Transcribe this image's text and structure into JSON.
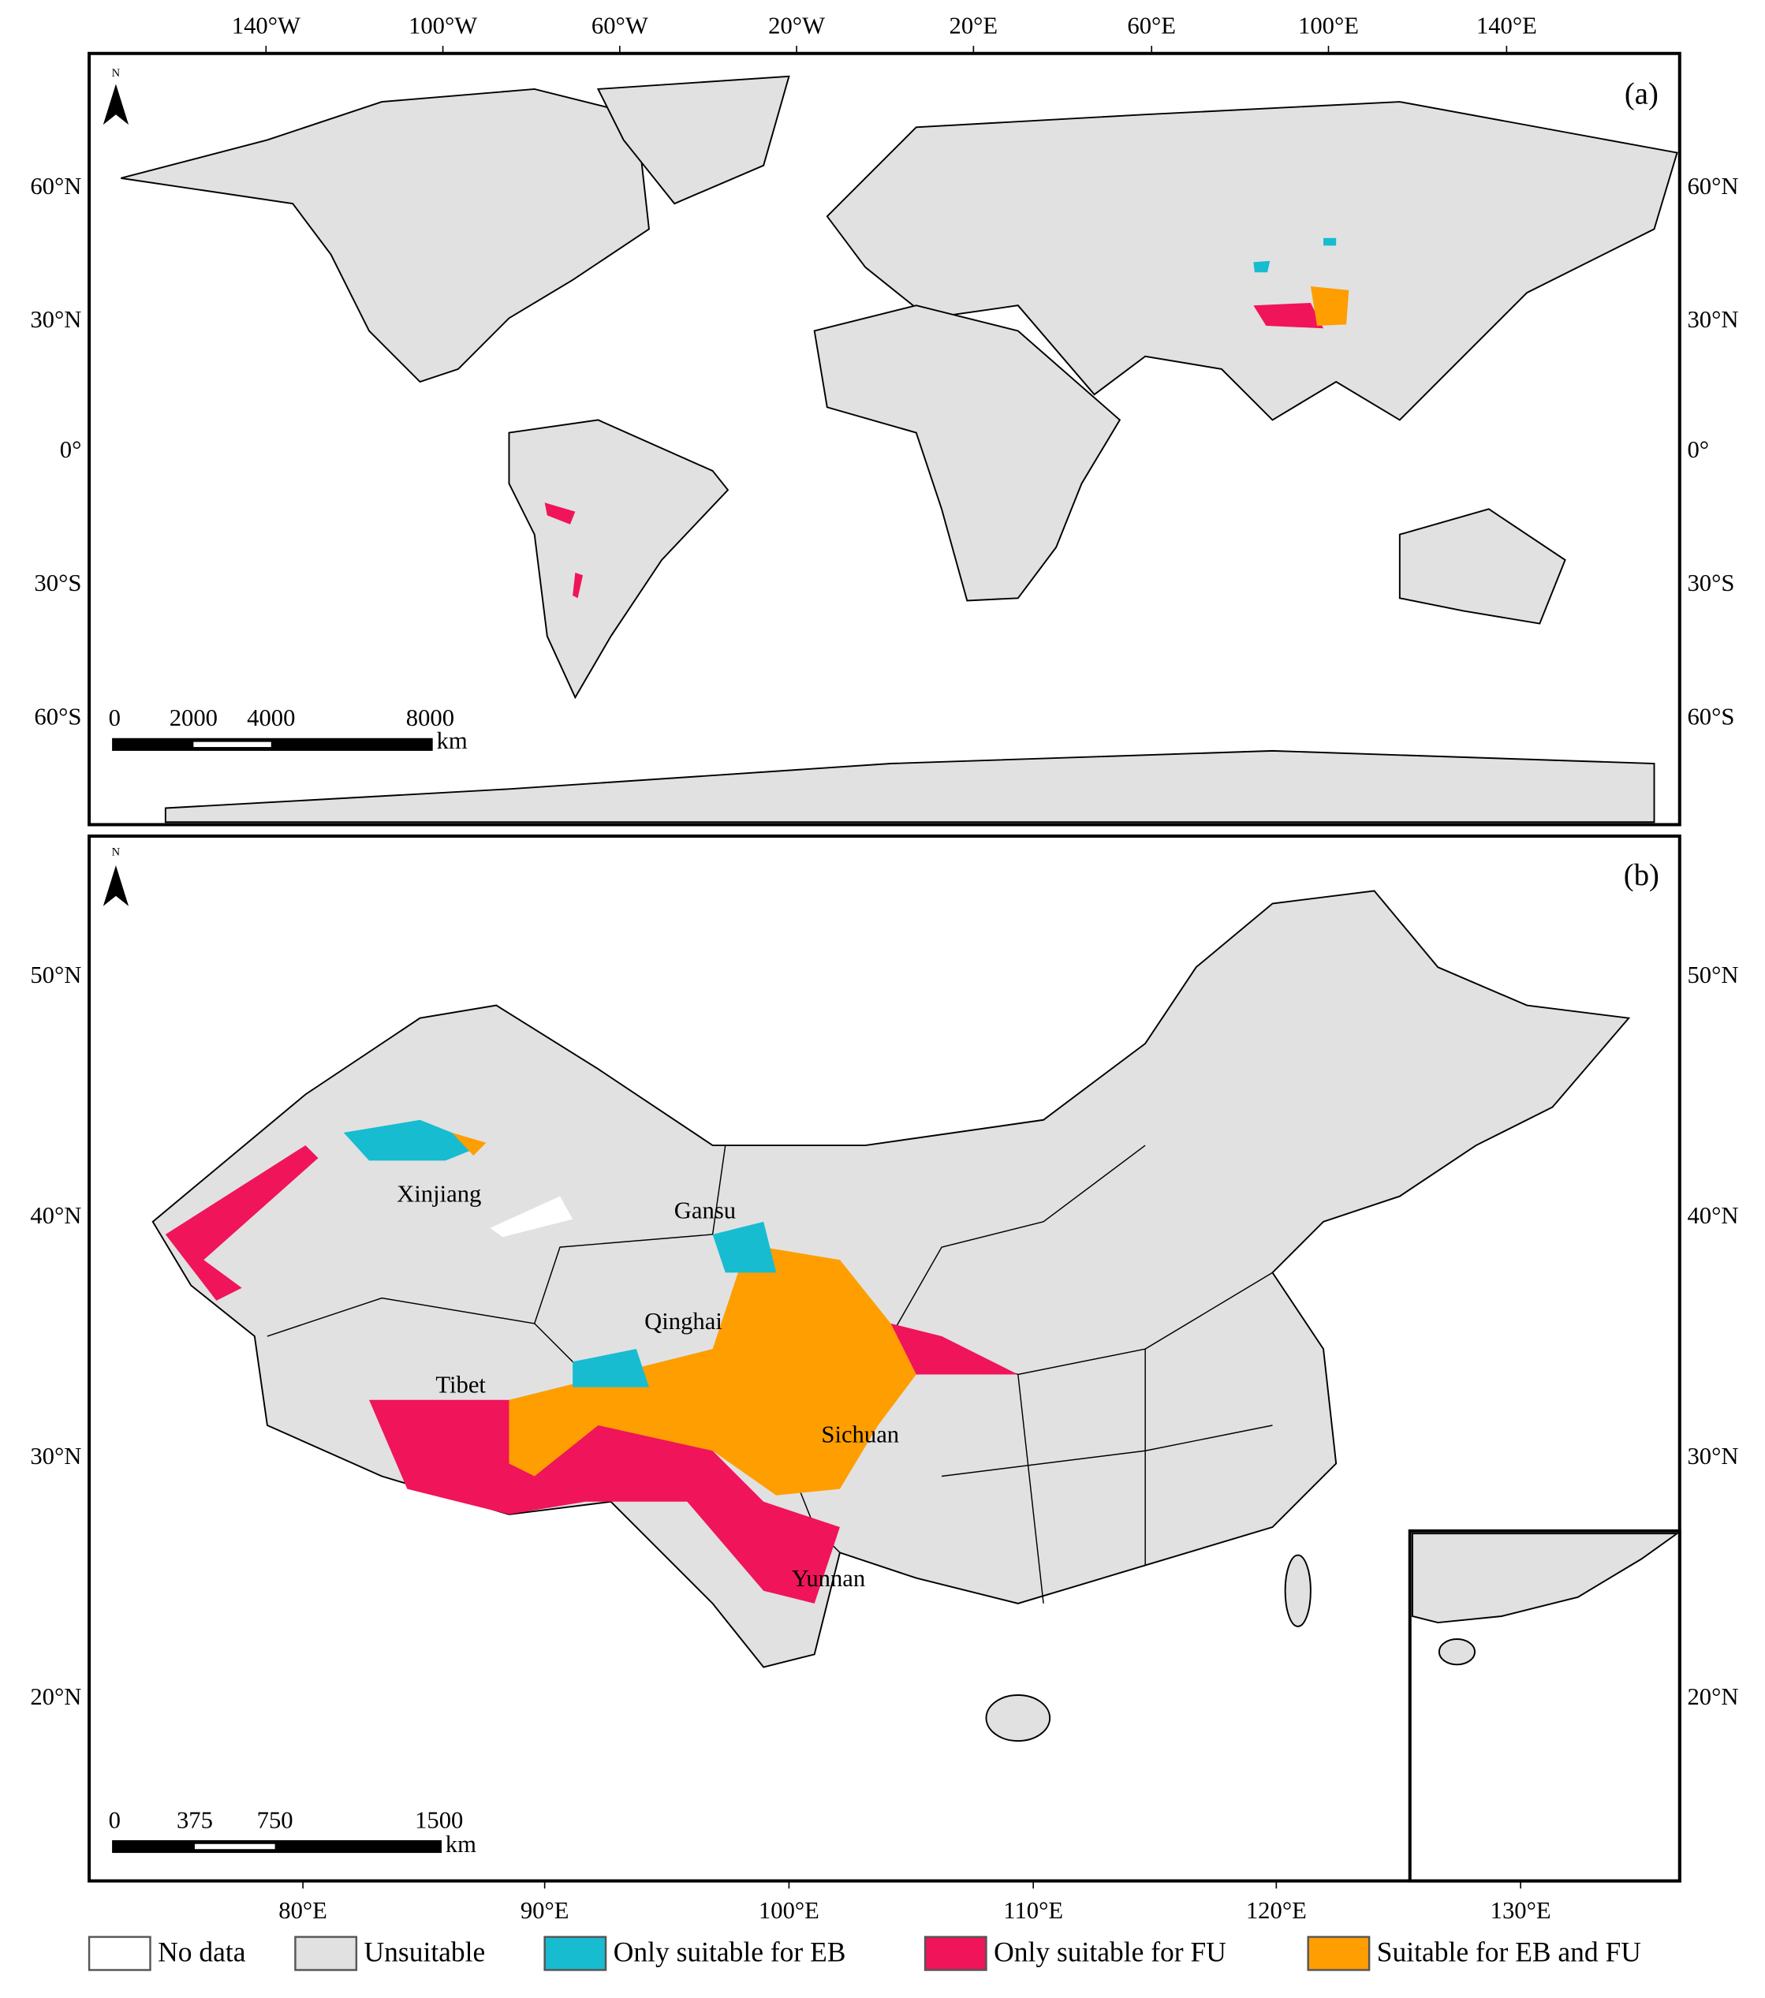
{
  "panel_a": {
    "label": "(a)",
    "north": "N",
    "x_ticks": [
      "140°W",
      "100°W",
      "60°W",
      "20°W",
      "20°E",
      "60°E",
      "100°E",
      "140°E"
    ],
    "y_ticks": [
      "60°N",
      "30°N",
      "0°",
      "30°S",
      "60°S"
    ],
    "scale_bar": {
      "ticks": [
        "0",
        "2000",
        "4000",
        "8000"
      ],
      "unit": "km"
    }
  },
  "panel_b": {
    "label": "(b)",
    "north": "N",
    "x_ticks": [
      "80°E",
      "90°E",
      "100°E",
      "110°E",
      "120°E",
      "130°E"
    ],
    "y_ticks": [
      "50°N",
      "40°N",
      "30°N",
      "20°N"
    ],
    "regions": [
      "Xinjiang",
      "Gansu",
      "Qinghai",
      "Tibet",
      "Sichuan",
      "Yunnan"
    ],
    "scale_bar": {
      "ticks": [
        "0",
        "375",
        "750",
        "1500"
      ],
      "unit": "km"
    }
  },
  "legend": [
    {
      "label": "No data",
      "color": "#ffffff"
    },
    {
      "label": "Unsuitable",
      "color": "#e1e1e1"
    },
    {
      "label": "Only suitable for EB",
      "color": "#17bcd0"
    },
    {
      "label": "Only suitable for FU",
      "color": "#f0145a"
    },
    {
      "label": "Suitable for EB and FU",
      "color": "#ff9e00"
    }
  ]
}
